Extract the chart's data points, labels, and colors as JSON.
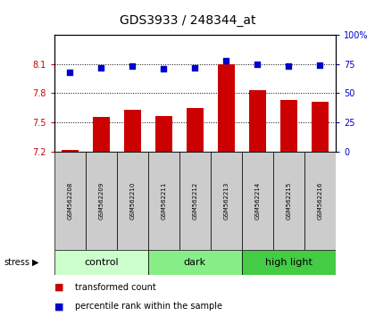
{
  "title": "GDS3933 / 248344_at",
  "samples": [
    "GSM562208",
    "GSM562209",
    "GSM562210",
    "GSM562211",
    "GSM562212",
    "GSM562213",
    "GSM562214",
    "GSM562215",
    "GSM562216"
  ],
  "bar_values": [
    7.22,
    7.56,
    7.63,
    7.57,
    7.65,
    8.1,
    7.83,
    7.73,
    7.71
  ],
  "dot_values": [
    68,
    72,
    73,
    71,
    72,
    78,
    75,
    73,
    74
  ],
  "ylim_left": [
    7.2,
    8.4
  ],
  "ylim_right": [
    0,
    100
  ],
  "yticks_left": [
    7.2,
    7.5,
    7.8,
    8.1
  ],
  "yticks_right": [
    0,
    25,
    50,
    75,
    100
  ],
  "bar_color": "#cc0000",
  "dot_color": "#0000cc",
  "groups": [
    {
      "label": "control",
      "start": 0,
      "end": 3,
      "color": "#ccffcc"
    },
    {
      "label": "dark",
      "start": 3,
      "end": 6,
      "color": "#88ee88"
    },
    {
      "label": "high light",
      "start": 6,
      "end": 9,
      "color": "#44cc44"
    }
  ],
  "stress_label": "stress",
  "legend_bar_label": "transformed count",
  "legend_dot_label": "percentile rank within the sample",
  "background_color": "#ffffff",
  "plot_bg_color": "#ffffff",
  "grid_color": "#000000",
  "tick_label_color_left": "#cc0000",
  "tick_label_color_right": "#0000cc",
  "sample_box_color": "#cccccc",
  "title_fontsize": 10,
  "tick_fontsize": 7,
  "sample_fontsize": 5,
  "group_fontsize": 8,
  "legend_fontsize": 7,
  "stress_fontsize": 7
}
